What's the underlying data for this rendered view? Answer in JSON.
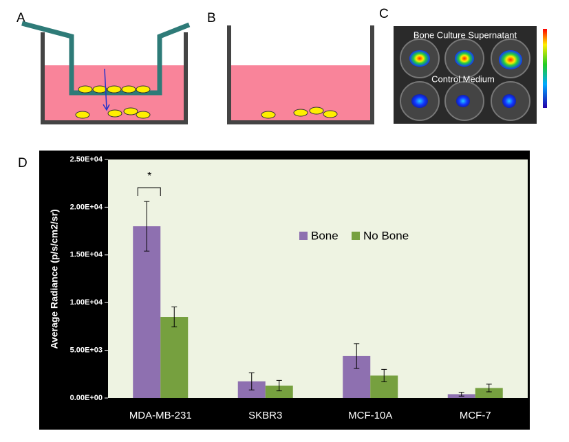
{
  "panel_labels": [
    "A",
    "B",
    "C",
    "D"
  ],
  "panel_c": {
    "labels": [
      "Bone Culture Supernatant",
      "Control Medium"
    ]
  },
  "chart_data": {
    "type": "bar",
    "y_label": "Average Radiance (p/s/cm2/sr)",
    "annotation": "*",
    "categories": [
      "MDA-MB-231",
      "SKBR3",
      "MCF-10A",
      "MCF-7"
    ],
    "series": [
      {
        "name": "Bone",
        "color": "#8e70b0",
        "values": [
          18000,
          1750,
          4400,
          400
        ],
        "errors": [
          2600,
          900,
          1300,
          200
        ]
      },
      {
        "name": "No Bone",
        "color": "#76a03f",
        "values": [
          8500,
          1300,
          2350,
          1050
        ],
        "errors": [
          1050,
          550,
          650,
          400
        ]
      }
    ],
    "ylim": [
      0,
      25000
    ],
    "yticks": [
      {
        "value": 0,
        "label": "0.00E+00"
      },
      {
        "value": 5000,
        "label": "5.00E+03"
      },
      {
        "value": 10000,
        "label": "1.00E+04"
      },
      {
        "value": 15000,
        "label": "1.50E+04"
      },
      {
        "value": 20000,
        "label": "2.00E+04"
      },
      {
        "value": 25000,
        "label": "2.50E+04"
      }
    ],
    "background": "#eef3e2"
  }
}
